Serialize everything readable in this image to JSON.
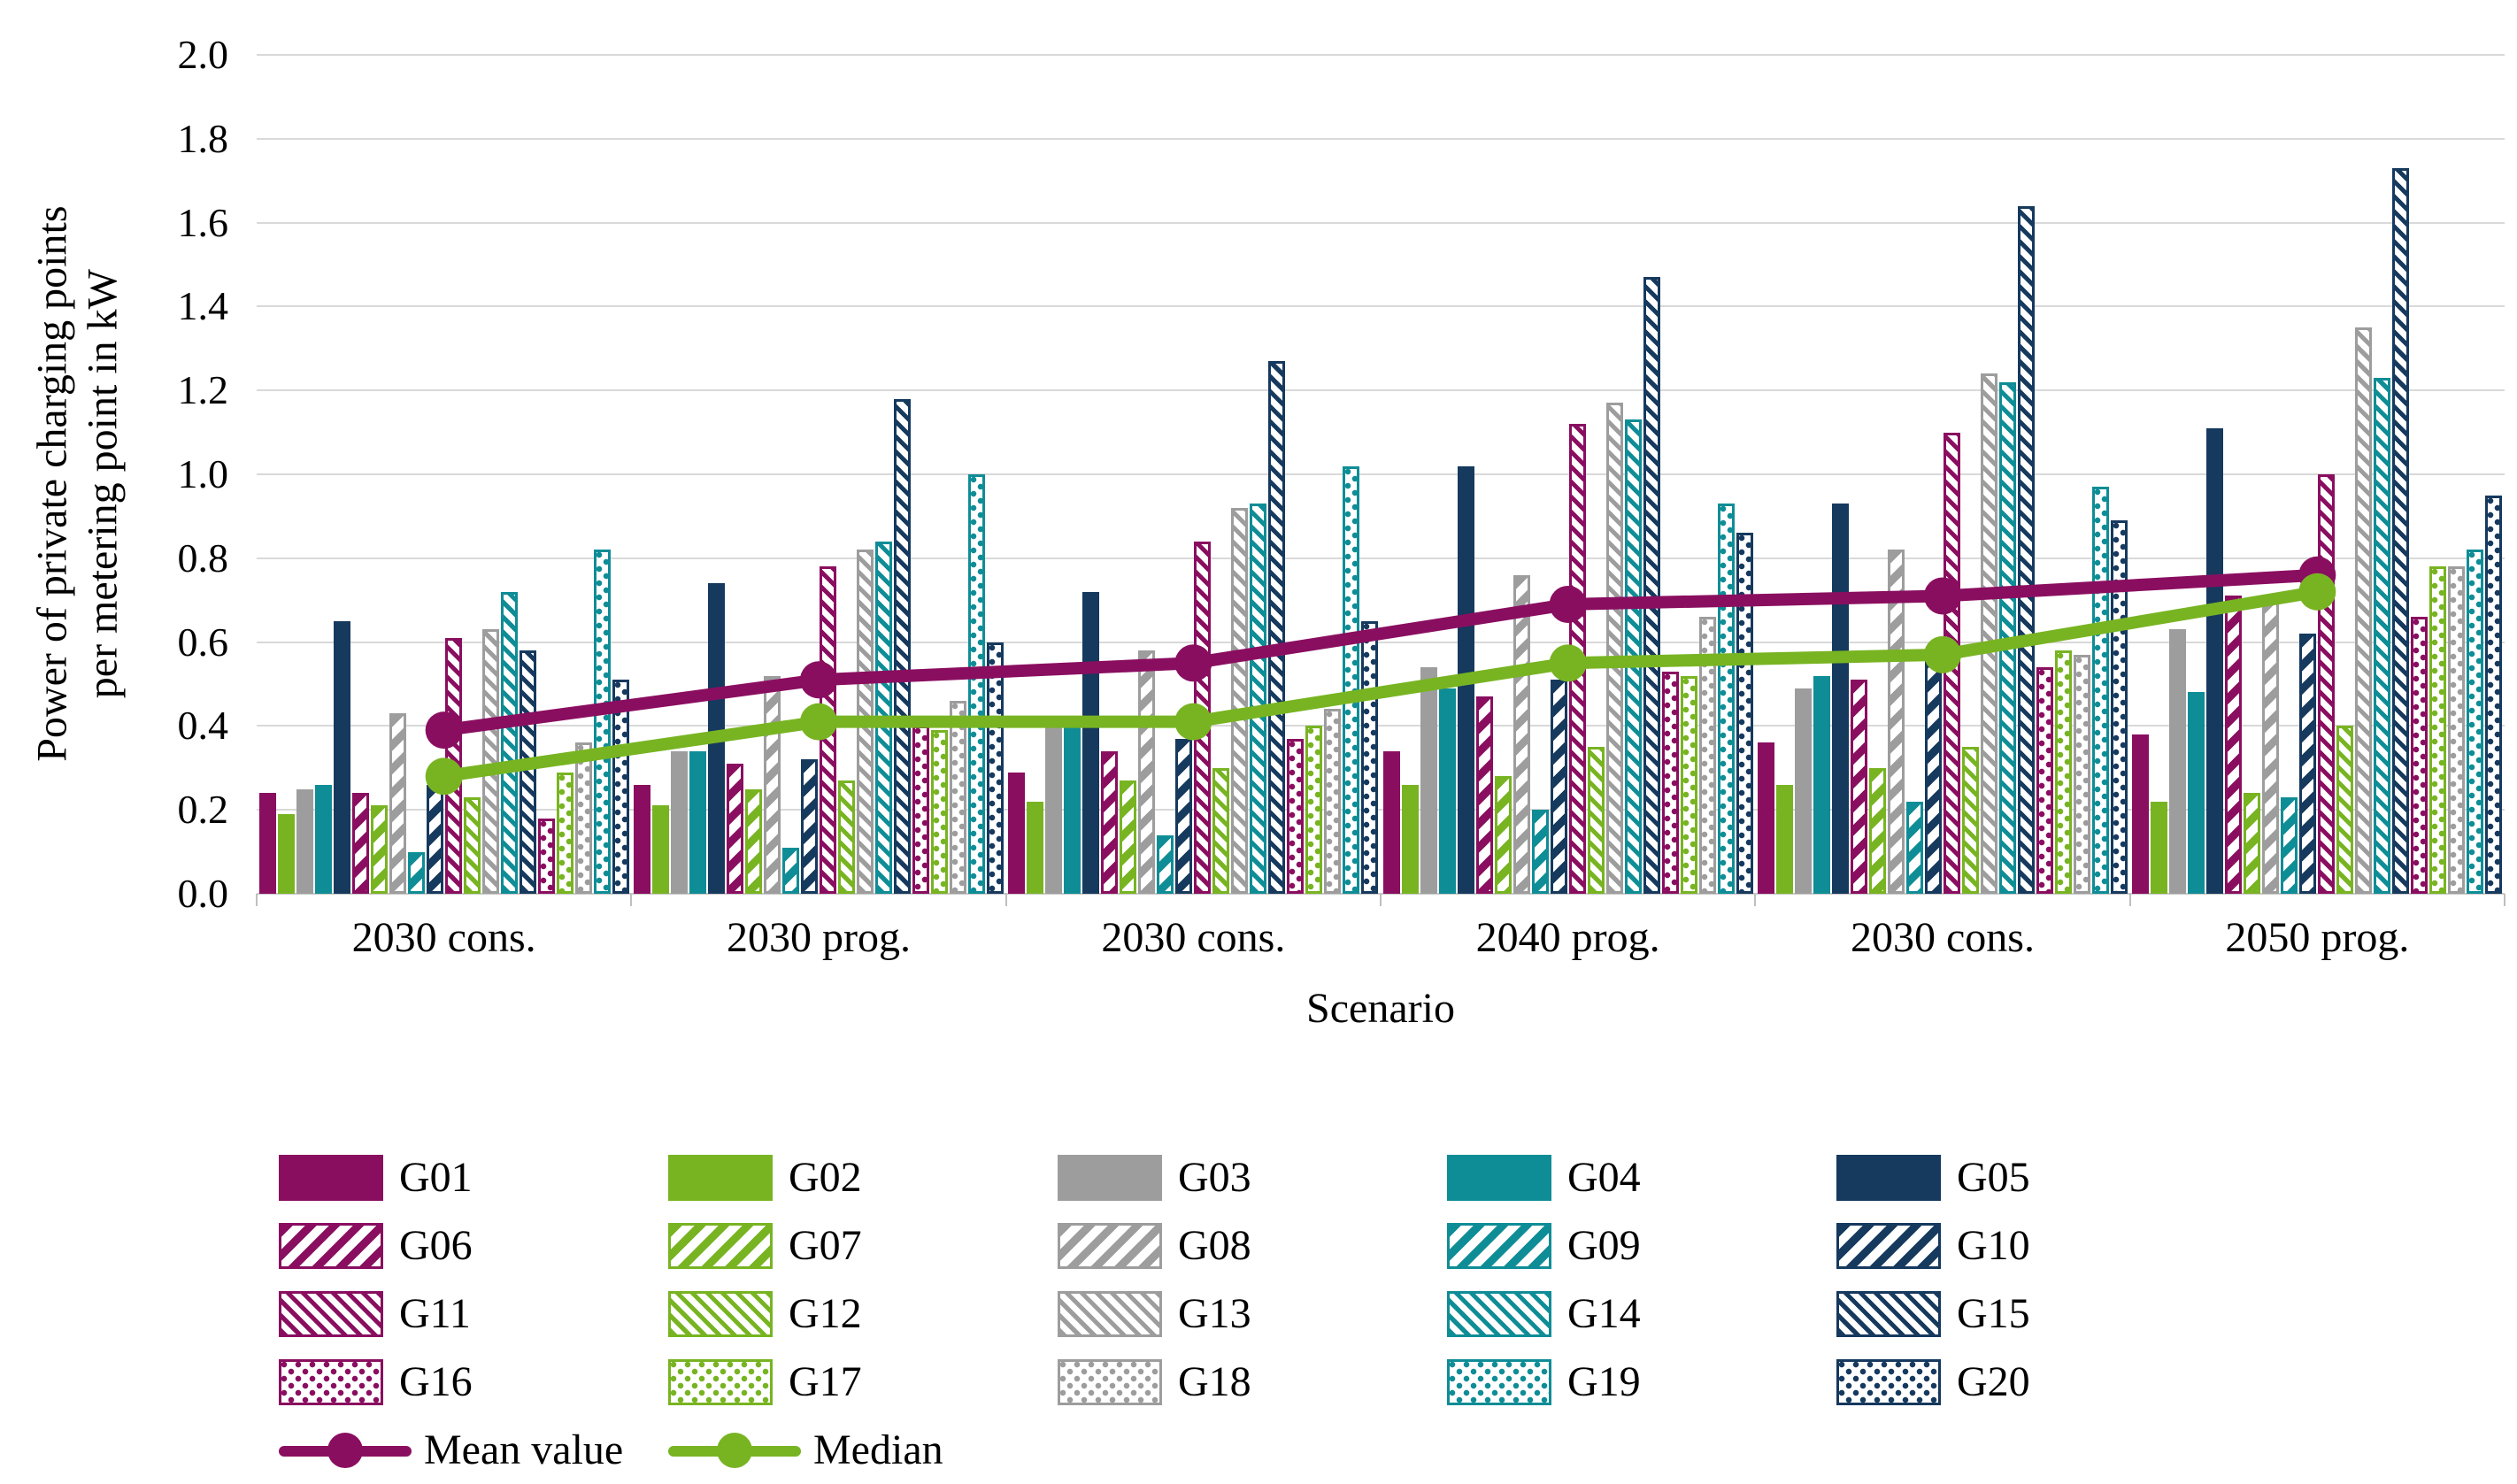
{
  "figure": {
    "y_axis": {
      "title_line1": "Power of private charging points",
      "title_line2": "per metering point in kW",
      "tick_labels": [
        "0.0",
        "0.2",
        "0.4",
        "0.6",
        "0.8",
        "1.0",
        "1.2",
        "1.4",
        "1.6",
        "1.8",
        "2.0"
      ]
    },
    "x_axis": {
      "title": "Scenario"
    },
    "colors": {
      "purple": "#8A0E60",
      "green": "#78B422",
      "gray": "#9D9D9D",
      "teal": "#0F8D96",
      "navy": "#16395E",
      "gridline": "#d9d9d9",
      "mean_line": "#8A0E60",
      "median_line": "#78B422"
    }
  },
  "chart_data": {
    "type": "bar",
    "title": "",
    "xlabel": "Scenario",
    "ylabel": "Power of private charging points per metering point in kW",
    "ylim": [
      0,
      2.0
    ],
    "ystep": 0.2,
    "grid": true,
    "legend_position": "bottom",
    "categories": [
      "2030 cons.",
      "2030 prog.",
      "2030 cons.",
      "2040 prog.",
      "2030 cons.",
      "2050 prog."
    ],
    "palette": [
      "#8A0E60",
      "#78B422",
      "#9D9D9D",
      "#0F8D96",
      "#16395E"
    ],
    "patterns": [
      "solid",
      "diag",
      "diag2",
      "dots"
    ],
    "series": [
      {
        "name": "G01",
        "values": [
          0.24,
          0.26,
          0.29,
          0.34,
          0.36,
          0.38
        ]
      },
      {
        "name": "G02",
        "values": [
          0.19,
          0.21,
          0.22,
          0.26,
          0.26,
          0.22
        ]
      },
      {
        "name": "G03",
        "values": [
          0.25,
          0.34,
          0.4,
          0.54,
          0.49,
          0.63
        ]
      },
      {
        "name": "G04",
        "values": [
          0.26,
          0.34,
          0.4,
          0.49,
          0.52,
          0.48
        ]
      },
      {
        "name": "G05",
        "values": [
          0.65,
          0.74,
          0.72,
          1.02,
          0.93,
          1.11
        ]
      },
      {
        "name": "G06",
        "values": [
          0.24,
          0.31,
          0.34,
          0.47,
          0.51,
          0.71
        ]
      },
      {
        "name": "G07",
        "values": [
          0.21,
          0.25,
          0.27,
          0.28,
          0.3,
          0.24
        ]
      },
      {
        "name": "G08",
        "values": [
          0.43,
          0.52,
          0.58,
          0.76,
          0.82,
          0.7
        ]
      },
      {
        "name": "G09",
        "values": [
          0.1,
          0.11,
          0.14,
          0.2,
          0.22,
          0.23
        ]
      },
      {
        "name": "G10",
        "values": [
          0.26,
          0.32,
          0.37,
          0.51,
          0.57,
          0.62
        ]
      },
      {
        "name": "G11",
        "values": [
          0.61,
          0.78,
          0.84,
          1.12,
          1.1,
          1.0
        ]
      },
      {
        "name": "G12",
        "values": [
          0.23,
          0.27,
          0.3,
          0.35,
          0.35,
          0.4
        ]
      },
      {
        "name": "G13",
        "values": [
          0.63,
          0.82,
          0.92,
          1.17,
          1.24,
          1.35
        ]
      },
      {
        "name": "G14",
        "values": [
          0.72,
          0.84,
          0.93,
          1.13,
          1.22,
          1.23
        ]
      },
      {
        "name": "G15",
        "values": [
          0.58,
          1.18,
          1.27,
          1.47,
          1.64,
          1.73
        ]
      },
      {
        "name": "G16",
        "values": [
          0.18,
          0.4,
          0.37,
          0.53,
          0.54,
          0.66
        ]
      },
      {
        "name": "G17",
        "values": [
          0.29,
          0.39,
          0.4,
          0.52,
          0.58,
          0.78
        ]
      },
      {
        "name": "G18",
        "values": [
          0.36,
          0.46,
          0.44,
          0.66,
          0.57,
          0.78
        ]
      },
      {
        "name": "G19",
        "values": [
          0.82,
          1.0,
          1.02,
          0.93,
          0.97,
          0.82
        ]
      },
      {
        "name": "G20",
        "values": [
          0.51,
          0.6,
          0.65,
          0.86,
          0.89,
          0.95
        ]
      }
    ],
    "lines": [
      {
        "name": "Mean value",
        "color": "#8A0E60",
        "values": [
          0.39,
          0.51,
          0.55,
          0.69,
          0.71,
          0.76
        ]
      },
      {
        "name": "Median",
        "color": "#78B422",
        "values": [
          0.28,
          0.41,
          0.41,
          0.55,
          0.57,
          0.72
        ]
      }
    ]
  }
}
